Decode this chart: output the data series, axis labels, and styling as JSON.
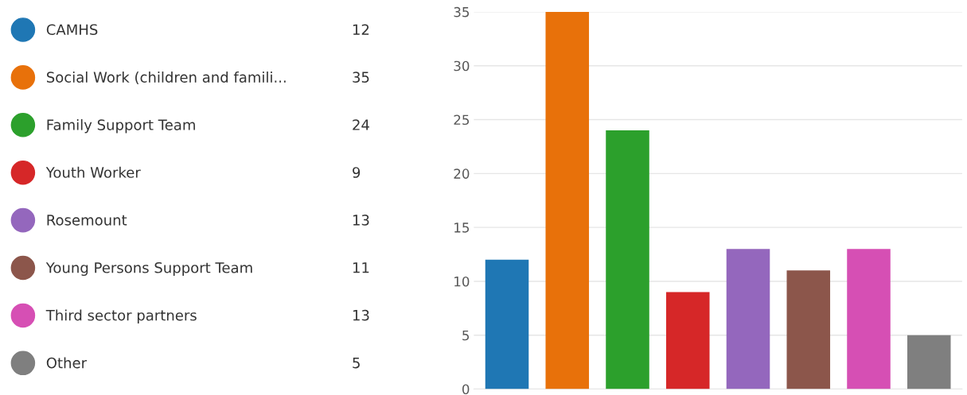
{
  "chart_data": {
    "type": "bar",
    "categories": [
      null,
      null,
      null,
      null,
      null,
      null,
      null,
      null
    ],
    "series": [
      {
        "name": "CAMHS",
        "color": "#1f77b4",
        "values": [
          12,
          null,
          null,
          null,
          null,
          null,
          null,
          null
        ]
      },
      {
        "name": "Social Work (children and famili...",
        "color": "#e8710a",
        "values": [
          null,
          35,
          null,
          null,
          null,
          null,
          null,
          null
        ]
      },
      {
        "name": "Family Support Team",
        "color": "#2ca02c",
        "values": [
          null,
          null,
          24,
          null,
          null,
          null,
          null,
          null
        ]
      },
      {
        "name": "Youth Worker",
        "color": "#d62728",
        "values": [
          null,
          null,
          null,
          9,
          null,
          null,
          null,
          null
        ]
      },
      {
        "name": "Rosemount",
        "color": "#9467bd",
        "values": [
          null,
          null,
          null,
          null,
          13,
          null,
          null,
          null
        ]
      },
      {
        "name": "Young Persons Support Team",
        "color": "#8c564b",
        "values": [
          null,
          null,
          null,
          null,
          null,
          11,
          null,
          null
        ]
      },
      {
        "name": "Third sector partners",
        "color": "#d64fb4",
        "values": [
          null,
          null,
          null,
          null,
          null,
          null,
          13,
          null
        ]
      },
      {
        "name": "Other",
        "color": "#7f7f7f",
        "values": [
          null,
          null,
          null,
          null,
          null,
          null,
          null,
          5
        ]
      }
    ],
    "ylim": [
      0,
      35
    ],
    "yticks": [
      0,
      5,
      10,
      15,
      20,
      25,
      30,
      35
    ],
    "annotations": [
      "12",
      "35",
      "24",
      "9",
      "13",
      "11",
      "13",
      "5"
    ],
    "grid": "y",
    "legend": "left",
    "tick_labels": "y"
  }
}
